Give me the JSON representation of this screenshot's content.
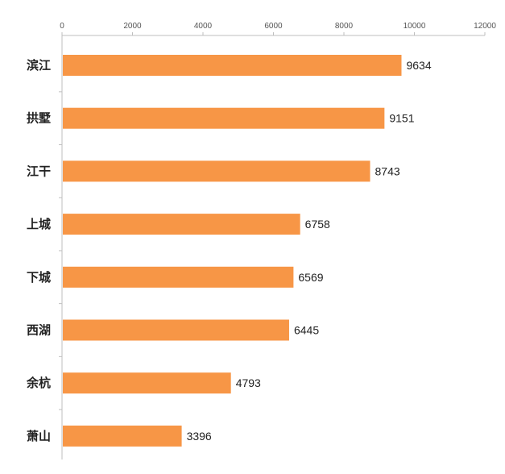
{
  "chart_data": {
    "type": "bar",
    "orientation": "horizontal",
    "categories": [
      "滨江",
      "拱墅",
      "江干",
      "上城",
      "下城",
      "西湖",
      "余杭",
      "萧山"
    ],
    "values": [
      9634,
      9151,
      8743,
      6758,
      6569,
      6445,
      4793,
      3396
    ],
    "xlim": [
      0,
      12000
    ],
    "x_ticks": [
      0,
      2000,
      4000,
      6000,
      8000,
      10000,
      12000
    ],
    "x_axis_position": "top",
    "grid": false,
    "legend": "none",
    "data_labels": true,
    "bar_color": "#F79646",
    "axis_color": "#BFBFBF"
  }
}
